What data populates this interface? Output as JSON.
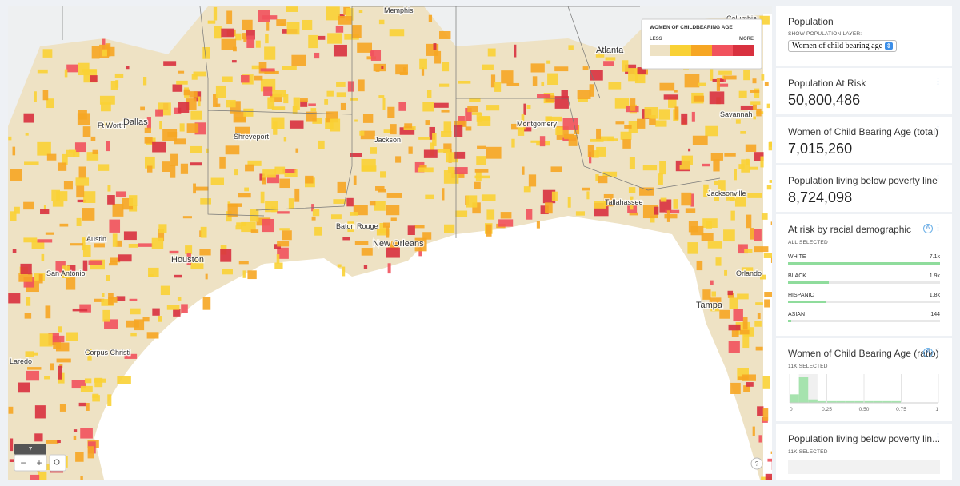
{
  "map": {
    "cities": [
      "Memphis",
      "Columbia",
      "Atlanta",
      "Ft Worth",
      "Dallas",
      "Shreveport",
      "Jackson",
      "Montgomery",
      "Savannah",
      "Jacksonville",
      "Tallahassee",
      "Baton Rouge",
      "New Orleans",
      "Austin",
      "Houston",
      "San Antonio",
      "Orlando",
      "Tampa",
      "Corpus Christi",
      "Laredo"
    ],
    "legend": {
      "title": "WOMEN OF CHILDBEARING AGE",
      "low": "LESS",
      "high": "MORE",
      "colors": [
        "#eee2c4",
        "#f9d135",
        "#f6a623",
        "#f1525d",
        "#d8313f"
      ]
    },
    "zoom": "7",
    "help": "?"
  },
  "sidebar": {
    "layer": {
      "title": "Population",
      "label": "SHOW POPULATION LAYER:",
      "selected": "Women of child bearing age"
    },
    "totals": [
      {
        "title": "Population At Risk",
        "value": "50,800,486"
      },
      {
        "title": "Women of Child Bearing Age (total)",
        "value": "7,015,260"
      },
      {
        "title": "Population living below poverty line (t...",
        "value": "8,724,098"
      }
    ],
    "racial": {
      "title": "At risk by racial demographic",
      "count": "6",
      "status": "ALL SELECTED",
      "color": "#8fdc9c",
      "categories": [
        "WHITE",
        "BLACK",
        "HISPANIC",
        "ASIAN"
      ],
      "values": [
        7100,
        1900,
        1800,
        144
      ],
      "value_labels": [
        "7.1k",
        "1.9k",
        "1.8k",
        "144"
      ]
    },
    "ratio": {
      "type": "histogram",
      "title": "Women of Child Bearing Age (ratio)",
      "count": "6",
      "status": "11K SELECTED",
      "color": "#a6e3ae",
      "bins": [
        0,
        0.0625,
        0.125,
        0.1875,
        0.25,
        0.3125,
        0.375,
        0.4375,
        0.5,
        0.5625,
        0.625,
        0.6875,
        0.75,
        0.8125,
        0.875,
        0.9375,
        1
      ],
      "counts": [
        5,
        15,
        2,
        1,
        1,
        1,
        1,
        1,
        1,
        1,
        1,
        1,
        0,
        0,
        0,
        0
      ],
      "xlim": [
        0,
        1
      ],
      "xticks": [
        0,
        0.25,
        {
          "value": 0.5,
          "label": "0.50"
        },
        0.75,
        1
      ]
    },
    "poverty_ratio": {
      "title": "Population living below poverty lin...",
      "status": "11K SELECTED"
    }
  }
}
